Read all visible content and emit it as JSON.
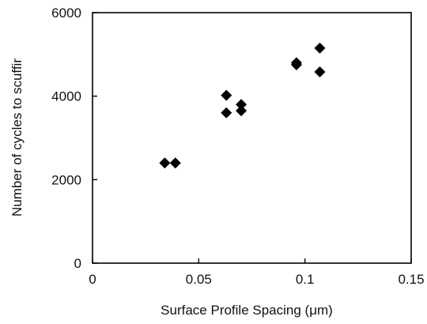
{
  "chart_data": {
    "type": "scatter",
    "title": "",
    "xlabel": "Surface Profile Spacing (μm)",
    "ylabel": "Number of cycles to scuffir",
    "xlim": [
      0,
      0.15
    ],
    "ylim": [
      0,
      6000
    ],
    "xticks": [
      0,
      0.05,
      0.1,
      0.15
    ],
    "xtick_labels": [
      "0",
      "0.05",
      "0.1",
      "0.15"
    ],
    "yticks": [
      0,
      2000,
      4000,
      6000
    ],
    "ytick_labels": [
      "0",
      "2000",
      "4000",
      "6000"
    ],
    "grid": false,
    "legend": "none",
    "marker": "diamond",
    "marker_color": "#000000",
    "series": [
      {
        "points": [
          {
            "x": 0.034,
            "y": 2400
          },
          {
            "x": 0.039,
            "y": 2400
          },
          {
            "x": 0.063,
            "y": 3600
          },
          {
            "x": 0.063,
            "y": 4020
          },
          {
            "x": 0.07,
            "y": 3650
          },
          {
            "x": 0.07,
            "y": 3800
          },
          {
            "x": 0.096,
            "y": 4750
          },
          {
            "x": 0.096,
            "y": 4800
          },
          {
            "x": 0.107,
            "y": 4580
          },
          {
            "x": 0.107,
            "y": 5150
          }
        ]
      }
    ]
  }
}
